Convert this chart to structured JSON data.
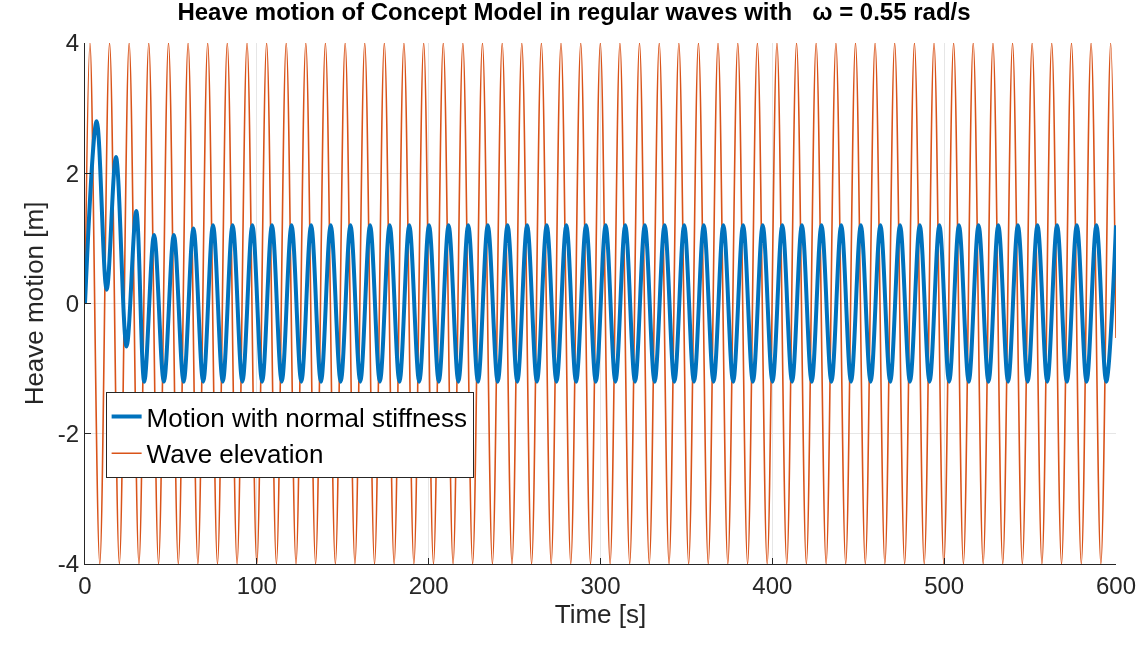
{
  "chart_data": {
    "type": "line",
    "title": "Heave motion of Concept Model in regular waves with   ω = 0.55 rad/s",
    "xlabel": "Time [s]",
    "ylabel": "Heave motion [m]",
    "xlim": [
      0,
      600
    ],
    "xticks": [
      0,
      100,
      200,
      300,
      400,
      500,
      600
    ],
    "ylim": [
      -4,
      4
    ],
    "yticks": [
      -4,
      -2,
      0,
      2,
      4
    ],
    "grid": true,
    "legend": "left",
    "marker": "none",
    "line_style": "solid",
    "series": [
      {
        "name": "Motion with normal stiffness",
        "color": "#0072bd",
        "x": [
          0,
          6.8,
          12.6,
          18.0,
          24.2,
          29.8,
          34.5,
          40.2,
          45.9,
          51.7,
          57.4,
          63.1,
          68.8,
          74.5,
          80.2,
          85.9,
          91.6,
          97.4,
          103.1,
          108.8,
          114.5,
          120.2,
          125.9,
          131.6,
          137.3,
          143.0,
          148.8,
          154.5,
          160.2,
          165.9,
          171.6,
          177.3,
          183.0,
          188.7,
          194.5,
          200.2,
          205.9,
          211.6,
          217.3,
          223.0,
          228.7,
          234.4,
          240.2,
          245.9,
          251.6,
          257.3,
          263.0,
          268.7,
          274.4,
          280.1,
          285.8,
          291.6,
          297.3,
          303.0,
          308.7,
          314.4,
          320.1,
          325.8,
          331.5,
          337.3,
          343.0,
          348.7,
          354.4,
          360.1,
          365.8,
          371.5,
          377.2,
          383.0,
          388.7,
          394.4,
          400.1,
          405.8,
          411.5,
          417.2,
          422.9,
          428.6,
          434.4,
          440.1,
          445.8,
          451.5,
          457.2,
          462.9,
          468.6,
          474.3,
          480.1,
          485.8,
          491.5,
          497.2,
          502.9,
          508.6,
          514.3,
          520.0,
          525.8,
          531.5,
          537.2,
          542.9,
          548.6,
          554.3,
          560.0,
          565.7,
          571.4,
          577.2,
          582.9,
          588.6,
          594.3,
          600
        ],
        "values": [
          0,
          2.8,
          0.21,
          2.25,
          -0.66,
          1.42,
          -1.2,
          1.05,
          -1.2,
          1.05,
          -1.2,
          1.15,
          -1.2,
          1.2,
          -1.2,
          1.2,
          -1.2,
          1.2,
          -1.2,
          1.2,
          -1.2,
          1.2,
          -1.2,
          1.2,
          -1.2,
          1.2,
          -1.2,
          1.2,
          -1.2,
          1.2,
          -1.2,
          1.2,
          -1.2,
          1.2,
          -1.2,
          1.2,
          -1.2,
          1.2,
          -1.2,
          1.2,
          -1.2,
          1.2,
          -1.2,
          1.2,
          -1.2,
          1.2,
          -1.2,
          1.2,
          -1.2,
          1.2,
          -1.2,
          1.2,
          -1.2,
          1.2,
          -1.2,
          1.2,
          -1.2,
          1.2,
          -1.2,
          1.2,
          -1.2,
          1.2,
          -1.2,
          1.2,
          -1.2,
          1.2,
          -1.2,
          1.2,
          -1.2,
          1.2,
          -1.2,
          1.2,
          -1.2,
          1.2,
          -1.2,
          1.2,
          -1.2,
          1.2,
          -1.2,
          1.2,
          -1.2,
          1.2,
          -1.2,
          1.2,
          -1.2,
          1.2,
          -1.2,
          1.2,
          -1.2,
          1.2,
          -1.2,
          1.2,
          -1.2,
          1.2,
          -1.2,
          1.2,
          -1.2,
          1.2,
          -1.2,
          1.2,
          -1.2,
          1.2,
          -1.2,
          1.2,
          -1.2,
          1.2
        ]
      },
      {
        "name": "Wave elevation",
        "color": "#d95319",
        "x": [
          0,
          2.9,
          8.6,
          14.3,
          20.0,
          25.7,
          31.4,
          37.1,
          42.8,
          48.6,
          54.3,
          60.0,
          65.7,
          71.4,
          77.1,
          82.8,
          88.5,
          94.3,
          100.0,
          105.7,
          111.4,
          117.1,
          122.8,
          128.5,
          134.2,
          139.9,
          145.7,
          151.4,
          157.1,
          162.8,
          168.5,
          174.2,
          179.9,
          185.6,
          191.4,
          197.1,
          202.8,
          208.5,
          214.2,
          219.9,
          225.6,
          231.3,
          237.1,
          242.8,
          248.5,
          254.2,
          259.9,
          265.6,
          271.3,
          277.0,
          282.7,
          288.5,
          294.2,
          299.9,
          305.6,
          311.3,
          317.0,
          322.7,
          328.4,
          334.2,
          339.9,
          345.6,
          351.3,
          357.0,
          362.7,
          368.4,
          374.1,
          379.9,
          385.6,
          391.3,
          397.0,
          402.7,
          408.4,
          414.1,
          419.8,
          425.5,
          431.3,
          437.0,
          442.7,
          448.4,
          454.1,
          459.8,
          465.5,
          471.2,
          477.0,
          482.7,
          488.4,
          494.1,
          499.8,
          505.5,
          511.2,
          516.9,
          522.7,
          528.4,
          534.1,
          539.8,
          545.5,
          551.2,
          556.9,
          562.6,
          568.3,
          574.1,
          579.8,
          585.5,
          591.2,
          596.9,
          600
        ],
        "values": [
          0,
          4,
          -4,
          4,
          -4,
          4,
          -4,
          4,
          -4,
          4,
          -4,
          4,
          -4,
          4,
          -4,
          4,
          -4,
          4,
          -4,
          4,
          -4,
          4,
          -4,
          4,
          -4,
          4,
          -4,
          4,
          -4,
          4,
          -4,
          4,
          -4,
          4,
          -4,
          4,
          -4,
          4,
          -4,
          4,
          -4,
          4,
          -4,
          4,
          -4,
          4,
          -4,
          4,
          -4,
          4,
          -4,
          4,
          -4,
          4,
          -4,
          4,
          -4,
          4,
          -4,
          4,
          -4,
          4,
          -4,
          4,
          -4,
          4,
          -4,
          4,
          -4,
          4,
          -4,
          4,
          -4,
          4,
          -4,
          4,
          -4,
          4,
          -4,
          4,
          -4,
          4,
          -4,
          4,
          -4,
          4,
          -4,
          4,
          -4,
          4,
          -4,
          4,
          -4,
          4,
          -4,
          4,
          -4,
          4,
          -4,
          4,
          -4,
          4,
          -4,
          4,
          -4,
          4,
          -0.53
        ]
      }
    ]
  }
}
